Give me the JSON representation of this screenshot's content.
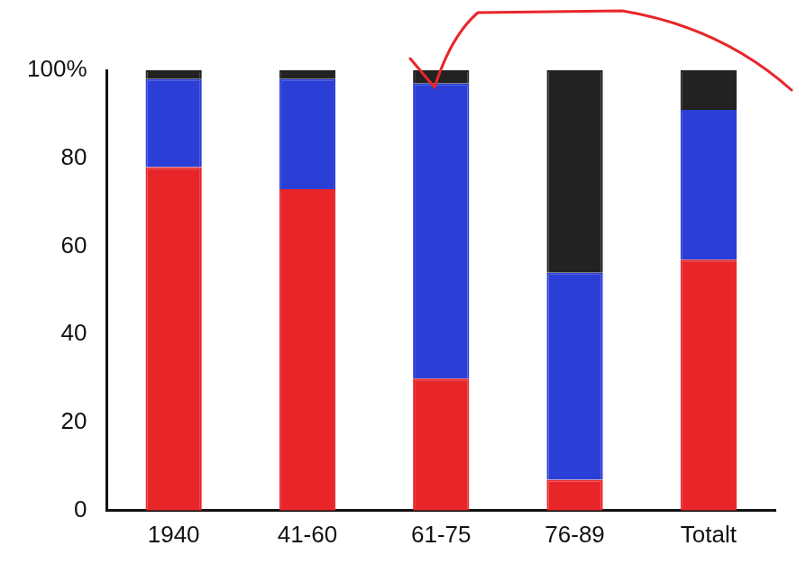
{
  "chart_data": {
    "type": "bar",
    "stacked": true,
    "grid": false,
    "categories": [
      "1940",
      "41-60",
      "61-75",
      "76-89",
      "Totalt"
    ],
    "series": [
      {
        "color": "#e8262a",
        "values": [
          78,
          73,
          30,
          7,
          57
        ]
      },
      {
        "color": "#2b3fd6",
        "values": [
          20,
          25,
          67,
          47,
          34
        ]
      },
      {
        "color": "#222222",
        "values": [
          2,
          2,
          3,
          46,
          9
        ]
      }
    ],
    "ylim": [
      0,
      100
    ],
    "yticks": [
      0,
      20,
      40,
      60,
      80,
      {
        "value": 100,
        "label": "100%"
      }
    ]
  }
}
